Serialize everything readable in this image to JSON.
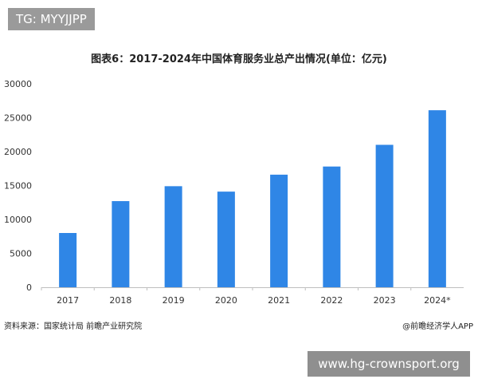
{
  "top_tag": "TG: MYYJJPP",
  "source_text": "资料来源：国家统计局 前瞻产业研究院",
  "credit_text": "@前瞻经济学人APP",
  "bottom_watermark": "www.hg-crownsport.org",
  "chart_data": {
    "type": "bar",
    "title": "图表6：2017-2024年中国体育服务业总产出情况(单位：亿元)",
    "categories": [
      "2017",
      "2018",
      "2019",
      "2020",
      "2021",
      "2022",
      "2023",
      "2024*"
    ],
    "values": [
      8000,
      12700,
      14900,
      14100,
      16600,
      17800,
      21000,
      26100
    ],
    "yticks": [
      0,
      5000,
      10000,
      15000,
      20000,
      25000,
      30000
    ],
    "ylim": [
      0,
      30000
    ],
    "xlabel": "",
    "ylabel": "",
    "grid": false,
    "bar_color": "#2f86e6",
    "axis_color": "#bfbfbf"
  }
}
